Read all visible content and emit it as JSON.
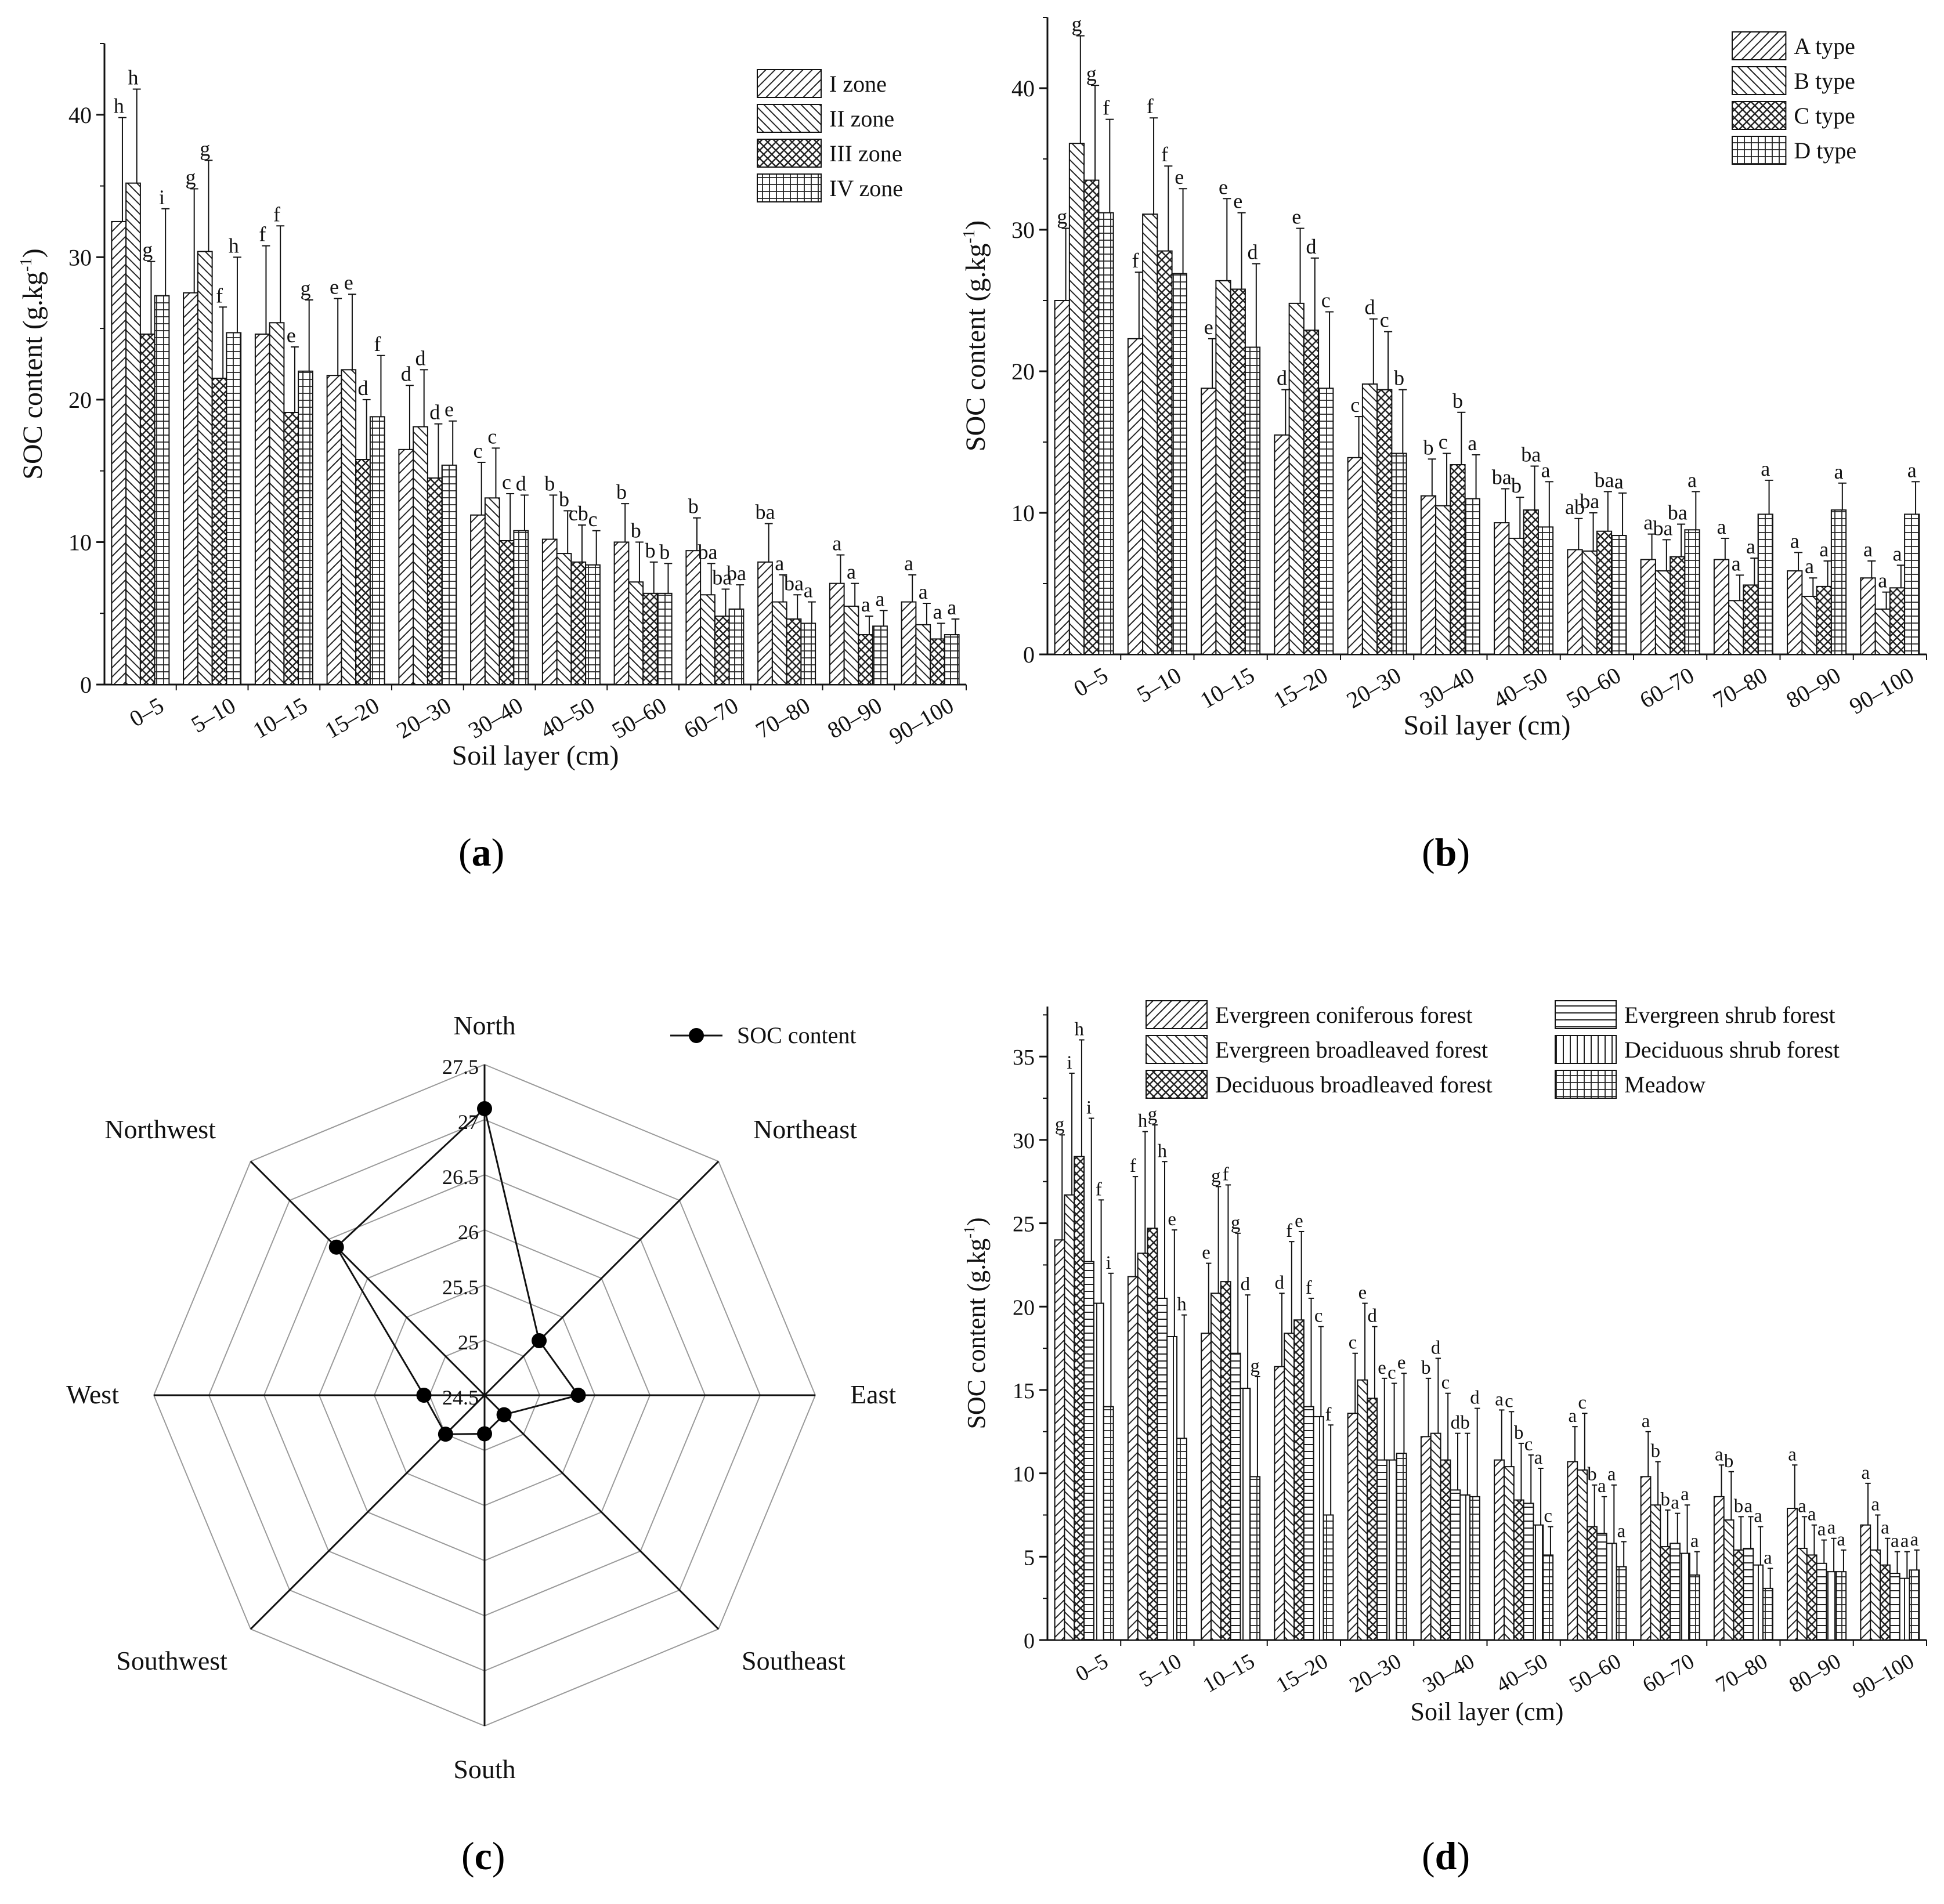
{
  "chart_data": [
    {
      "id": "a",
      "type": "bar",
      "panel_label": "a",
      "xlabel": "Soil layer (cm)",
      "ylabel": "SOC content (g.kg",
      "ylabel_sup": "-1",
      "ylabel_close": ")",
      "ylim": [
        0,
        45
      ],
      "yticks": [
        0,
        10,
        20,
        30,
        40
      ],
      "legend_position": "top-right",
      "categories": [
        "0–5",
        "5–10",
        "10–15",
        "15–20",
        "20–30",
        "30–40",
        "40–50",
        "50–60",
        "60–70",
        "70–80",
        "80–90",
        "90–100"
      ],
      "series": [
        {
          "name": "I zone",
          "pattern": "diag",
          "values": [
            32.5,
            27.5,
            24.6,
            21.7,
            16.5,
            11.9,
            10.2,
            10.0,
            9.4,
            8.6,
            7.1,
            5.8
          ],
          "errors": [
            7.3,
            7.3,
            6.2,
            5.4,
            4.5,
            3.7,
            3.1,
            2.7,
            2.3,
            2.7,
            2.0,
            1.9
          ],
          "letters": [
            "h",
            "g",
            "f",
            "e",
            "d",
            "c",
            "b",
            "b",
            "b",
            "ba",
            "a",
            "a"
          ]
        },
        {
          "name": "II zone",
          "pattern": "back",
          "values": [
            35.2,
            30.4,
            25.4,
            22.1,
            18.1,
            13.1,
            9.2,
            7.2,
            6.3,
            5.8,
            5.5,
            4.2
          ],
          "errors": [
            6.6,
            6.4,
            6.8,
            5.3,
            4.0,
            3.5,
            3.0,
            2.8,
            2.2,
            1.9,
            1.6,
            1.5
          ],
          "letters": [
            "h",
            "g",
            "f",
            "e",
            "d",
            "c",
            "b",
            "b",
            "ba",
            "a",
            "a",
            "a"
          ]
        },
        {
          "name": "III zone",
          "pattern": "cross",
          "values": [
            24.6,
            21.5,
            19.1,
            15.8,
            14.5,
            10.1,
            8.6,
            6.4,
            4.8,
            4.6,
            3.5,
            3.2
          ],
          "errors": [
            5.1,
            5.0,
            4.6,
            4.2,
            3.8,
            3.3,
            2.6,
            2.2,
            1.9,
            1.7,
            1.3,
            1.1
          ],
          "letters": [
            "g",
            "f",
            "e",
            "d",
            "d",
            "c",
            "cb",
            "b",
            "ba",
            "ba",
            "a",
            "a"
          ]
        },
        {
          "name": "IV zone",
          "pattern": "grid",
          "values": [
            27.3,
            24.7,
            22.0,
            18.8,
            15.4,
            10.8,
            8.4,
            6.4,
            5.3,
            4.3,
            4.1,
            3.5
          ],
          "errors": [
            6.1,
            5.3,
            5.0,
            4.3,
            3.1,
            2.5,
            2.4,
            2.1,
            1.7,
            1.5,
            1.1,
            1.1
          ],
          "letters": [
            "i",
            "h",
            "g",
            "f",
            "e",
            "d",
            "c",
            "b",
            "ba",
            "a",
            "a",
            "a"
          ]
        }
      ]
    },
    {
      "id": "b",
      "type": "bar",
      "panel_label": "b",
      "xlabel": "Soil layer (cm)",
      "ylabel": "SOC content (g.kg",
      "ylabel_sup": "-1",
      "ylabel_close": ")",
      "ylim": [
        0,
        45
      ],
      "yticks": [
        0,
        10,
        20,
        30,
        40
      ],
      "legend_position": "top-right",
      "categories": [
        "0–5",
        "5–10",
        "10–15",
        "15–20",
        "20–30",
        "30–40",
        "40–50",
        "50–60",
        "60–70",
        "70–80",
        "80–90",
        "90–100"
      ],
      "series": [
        {
          "name": "A type",
          "pattern": "diag",
          "values": [
            25.0,
            22.3,
            18.8,
            15.5,
            13.9,
            11.2,
            9.3,
            7.4,
            6.7,
            6.7,
            5.9,
            5.4
          ],
          "errors": [
            5.1,
            4.7,
            3.5,
            3.2,
            2.9,
            2.6,
            2.4,
            2.2,
            1.8,
            1.5,
            1.3,
            1.2
          ],
          "letters": [
            "g",
            "f",
            "e",
            "d",
            "c",
            "b",
            "ba",
            "ab",
            "a",
            "a",
            "a",
            "a"
          ]
        },
        {
          "name": "B type",
          "pattern": "back",
          "values": [
            36.1,
            31.1,
            26.4,
            24.8,
            19.1,
            10.5,
            8.2,
            7.3,
            5.9,
            3.8,
            4.1,
            3.2
          ],
          "errors": [
            7.6,
            6.8,
            5.8,
            5.3,
            4.6,
            3.7,
            2.9,
            2.7,
            2.2,
            1.8,
            1.3,
            1.2
          ],
          "letters": [
            "g",
            "f",
            "e",
            "e",
            "d",
            "c",
            "b",
            "ba",
            "ba",
            "a",
            "a",
            "a"
          ]
        },
        {
          "name": "C type",
          "pattern": "cross",
          "values": [
            33.5,
            28.5,
            25.8,
            22.9,
            18.7,
            13.4,
            10.2,
            8.7,
            6.9,
            4.9,
            4.8,
            4.7
          ],
          "errors": [
            6.7,
            6.0,
            5.4,
            5.1,
            4.1,
            3.7,
            3.1,
            2.8,
            2.3,
            1.9,
            1.8,
            1.6
          ],
          "letters": [
            "g",
            "f",
            "e",
            "d",
            "c",
            "b",
            "ba",
            "ba",
            "ba",
            "a",
            "a",
            "a"
          ]
        },
        {
          "name": "D type",
          "pattern": "grid",
          "values": [
            31.2,
            26.9,
            21.7,
            18.8,
            14.2,
            11.0,
            9.0,
            8.4,
            8.8,
            9.9,
            10.2,
            9.9
          ],
          "errors": [
            6.6,
            6.0,
            5.9,
            5.4,
            4.5,
            3.1,
            3.2,
            3.0,
            2.7,
            2.4,
            1.9,
            2.3
          ],
          "letters": [
            "f",
            "e",
            "d",
            "c",
            "b",
            "a",
            "a",
            "a",
            "a",
            "a",
            "a",
            "a"
          ]
        }
      ]
    },
    {
      "id": "c",
      "type": "radar",
      "panel_label": "c",
      "legend_position": "top-right",
      "series_name": "SOC content",
      "rmin": 24.5,
      "rmax": 27.5,
      "ticks": [
        24.5,
        25,
        25.5,
        26,
        26.5,
        27,
        27.5
      ],
      "directions": [
        "North",
        "Northeast",
        "East",
        "Southeast",
        "South",
        "Southwest",
        "West",
        "Northwest"
      ],
      "values": [
        27.1,
        25.2,
        25.35,
        24.75,
        24.85,
        25.0,
        25.05,
        26.4
      ]
    },
    {
      "id": "d",
      "type": "bar",
      "panel_label": "d",
      "xlabel": "Soil layer (cm)",
      "ylabel": "SOC content (g.kg",
      "ylabel_sup": "-1",
      "ylabel_close": ")",
      "ylim": [
        0,
        38
      ],
      "yticks": [
        0,
        5,
        10,
        15,
        20,
        25,
        30,
        35
      ],
      "legend_position": "top-right",
      "categories": [
        "0–5",
        "5–10",
        "10–15",
        "15–20",
        "20–30",
        "30–40",
        "40–50",
        "50–60",
        "60–70",
        "70–80",
        "80–90",
        "90–100"
      ],
      "series": [
        {
          "name": "Evergreen coniferous forest",
          "pattern": "diag",
          "values": [
            24.0,
            21.8,
            18.4,
            16.4,
            13.6,
            12.2,
            10.8,
            10.7,
            9.8,
            8.6,
            7.9,
            6.9
          ],
          "errors": [
            6.3,
            6.0,
            4.2,
            4.4,
            3.6,
            3.5,
            3.0,
            2.1,
            2.7,
            1.9,
            2.6,
            2.5
          ],
          "letters": [
            "g",
            "f",
            "e",
            "d",
            "c",
            "b",
            "a",
            "a",
            "a",
            "a",
            "a",
            "a"
          ]
        },
        {
          "name": "Evergreen broadleaved forest",
          "pattern": "back",
          "values": [
            26.7,
            23.2,
            20.8,
            18.4,
            15.6,
            12.4,
            10.4,
            10.2,
            8.1,
            7.2,
            5.5,
            5.4
          ],
          "errors": [
            7.3,
            7.3,
            6.4,
            5.5,
            4.6,
            4.5,
            3.3,
            3.4,
            2.6,
            2.9,
            1.9,
            2.1
          ],
          "letters": [
            "i",
            "h",
            "g",
            "f",
            "e",
            "d",
            "c",
            "c",
            "b",
            "b",
            "a",
            "a"
          ]
        },
        {
          "name": "Deciduous broadleaved forest",
          "pattern": "cross",
          "values": [
            29.0,
            24.7,
            21.5,
            19.2,
            14.5,
            10.8,
            8.4,
            6.8,
            5.6,
            5.4,
            5.1,
            4.5
          ],
          "errors": [
            7.0,
            6.2,
            5.8,
            5.3,
            4.3,
            4.0,
            3.4,
            2.5,
            2.2,
            2.0,
            1.8,
            1.6
          ],
          "letters": [
            "h",
            "g",
            "f",
            "e",
            "d",
            "c",
            "b",
            "b",
            "b",
            "b",
            "a",
            "a"
          ]
        },
        {
          "name": "Evergreen shrub forest",
          "pattern": "hline",
          "values": [
            22.7,
            20.5,
            17.2,
            14.0,
            10.8,
            9.0,
            8.2,
            6.4,
            5.8,
            5.5,
            4.6,
            4.0
          ],
          "errors": [
            8.6,
            8.2,
            7.2,
            6.5,
            4.9,
            3.4,
            2.9,
            2.2,
            1.8,
            1.9,
            1.4,
            1.3
          ],
          "letters": [
            "i",
            "h",
            "g",
            "f",
            "e",
            "d",
            "c",
            "a",
            "a",
            "a",
            "a",
            "a"
          ]
        },
        {
          "name": "Deciduous shrub forest",
          "pattern": "vline",
          "values": [
            20.2,
            18.2,
            15.1,
            13.4,
            10.8,
            8.7,
            6.9,
            5.8,
            5.2,
            4.5,
            4.1,
            3.7
          ],
          "errors": [
            6.2,
            6.4,
            5.6,
            5.4,
            4.6,
            3.7,
            3.4,
            3.5,
            2.9,
            2.3,
            2.0,
            1.6
          ],
          "letters": [
            "f",
            "e",
            "d",
            "c",
            "c",
            "b",
            "a",
            "a",
            "a",
            "a",
            "a",
            "a"
          ]
        },
        {
          "name": "Meadow",
          "pattern": "grid",
          "values": [
            14.0,
            12.1,
            9.8,
            7.5,
            11.2,
            8.6,
            5.1,
            4.4,
            3.9,
            3.1,
            4.1,
            4.2
          ],
          "errors": [
            8.0,
            7.4,
            6.0,
            5.4,
            4.8,
            5.3,
            1.7,
            1.5,
            1.4,
            1.2,
            1.3,
            1.2
          ],
          "letters": [
            "i",
            "h",
            "g",
            "f",
            "e",
            "d",
            "c",
            "a",
            "a",
            "a",
            "a",
            "a"
          ]
        }
      ]
    }
  ]
}
